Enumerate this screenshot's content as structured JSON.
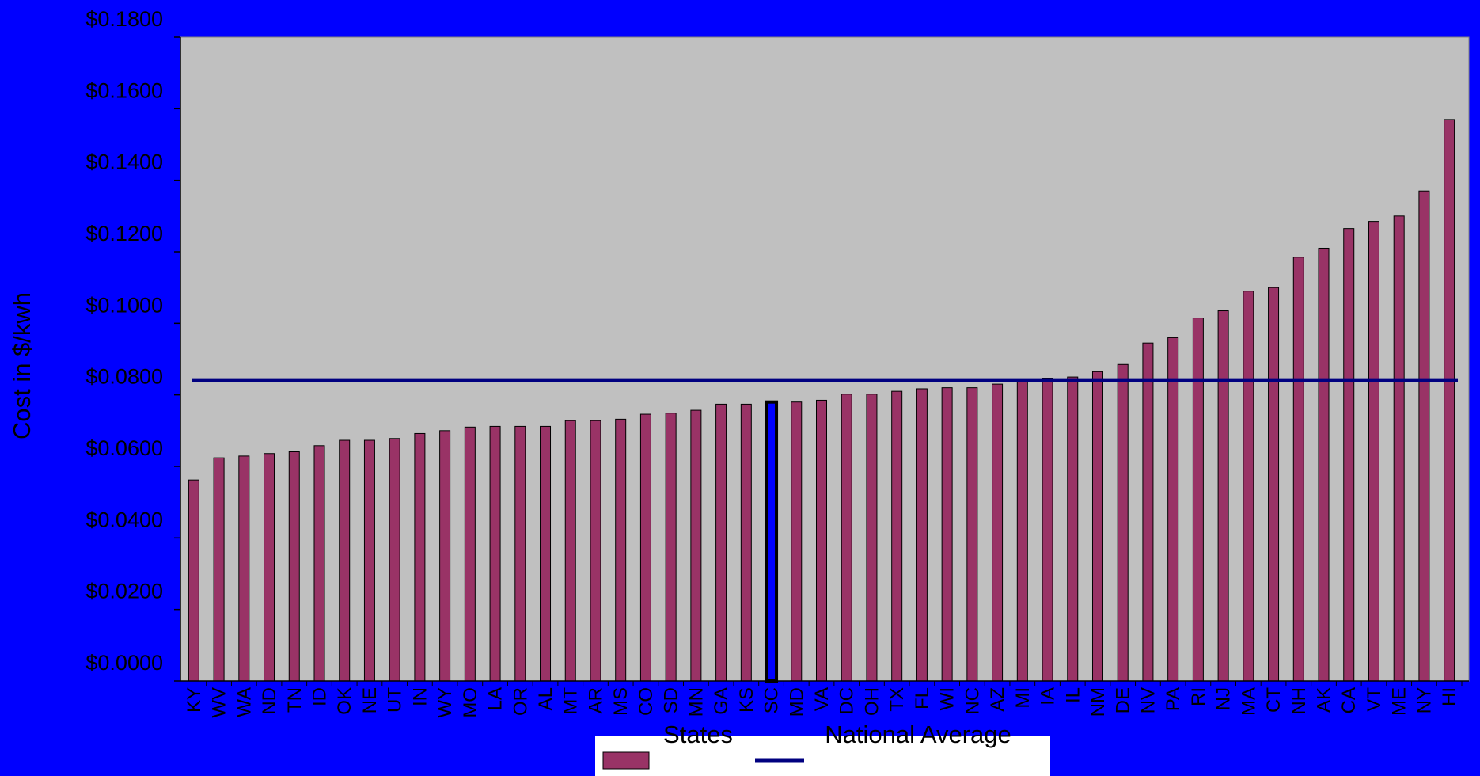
{
  "chart_data": {
    "type": "bar",
    "ylabel": "Cost in $/kwh",
    "xlabel": "",
    "title": "",
    "ylim": [
      0,
      0.18
    ],
    "y_ticks": [
      "$0.0000",
      "$0.0200",
      "$0.0400",
      "$0.0600",
      "$0.0800",
      "$0.1000",
      "$0.1200",
      "$0.1400",
      "$0.1600",
      "$0.1800"
    ],
    "y_tick_values": [
      0,
      0.02,
      0.04,
      0.06,
      0.08,
      0.1,
      0.12,
      0.14,
      0.16,
      0.18
    ],
    "categories": [
      "KY",
      "WV",
      "WA",
      "ND",
      "TN",
      "ID",
      "OK",
      "NE",
      "UT",
      "IN",
      "WY",
      "MO",
      "LA",
      "OR",
      "AL",
      "MT",
      "AR",
      "MS",
      "CO",
      "SD",
      "MN",
      "GA",
      "KS",
      "SC",
      "MD",
      "VA",
      "DC",
      "OH",
      "TX",
      "FL",
      "WI",
      "NC",
      "AZ",
      "MI",
      "IA",
      "IL",
      "NM",
      "DE",
      "NV",
      "PA",
      "RI",
      "NJ",
      "MA",
      "CT",
      "NH",
      "AK",
      "CA",
      "VT",
      "ME",
      "NY",
      "HI"
    ],
    "series": [
      {
        "name": "States",
        "color": "#993366",
        "values": [
          0.0562,
          0.0624,
          0.0629,
          0.0636,
          0.0641,
          0.0658,
          0.0673,
          0.0673,
          0.0678,
          0.0692,
          0.07,
          0.071,
          0.0712,
          0.0712,
          0.0712,
          0.0728,
          0.0728,
          0.0732,
          0.0746,
          0.0749,
          0.0757,
          0.0774,
          0.0774,
          0.078,
          0.078,
          0.0785,
          0.0802,
          0.0802,
          0.081,
          0.0817,
          0.082,
          0.082,
          0.083,
          0.084,
          0.0845,
          0.085,
          0.0865,
          0.0885,
          0.0945,
          0.096,
          0.1015,
          0.1035,
          0.109,
          0.11,
          0.1185,
          0.121,
          0.1265,
          0.1285,
          0.13,
          0.137,
          0.157
        ]
      }
    ],
    "highlight_category": "SC",
    "highlight_color": "#0000ff",
    "reference_line": {
      "name": "National Average",
      "value": 0.084,
      "color": "#000080"
    },
    "legend": {
      "position": "bottom-center",
      "items": [
        "States",
        "National Average"
      ]
    },
    "plot_background": "#c0c0c0",
    "page_background": "#0000ff",
    "grid": false
  }
}
